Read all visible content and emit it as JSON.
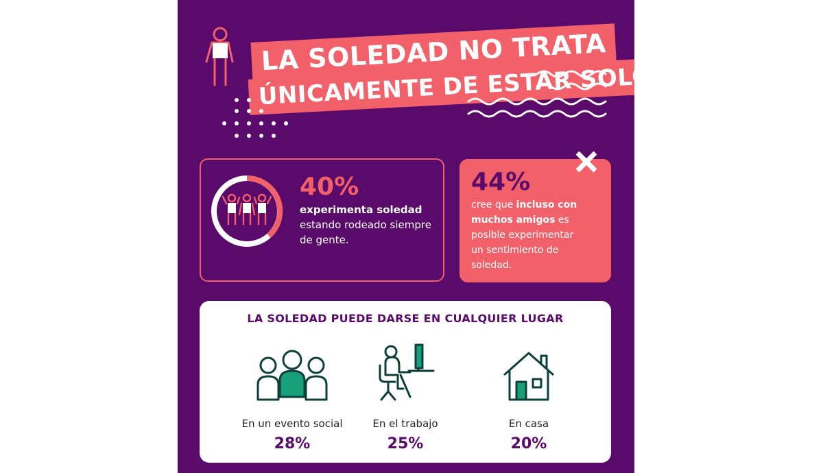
{
  "title": {
    "line1": "LA SOLEDAD NO TRATA",
    "line2": "ÚNICAMENTE DE ESTAR SOLO"
  },
  "stat_left": {
    "percent": "40%",
    "bold_text": "experimenta soledad",
    "text": "estando rodeado siempre de gente."
  },
  "stat_right": {
    "percent": "44%",
    "text_before": "cree que ",
    "bold_text": "incluso con muchos amigos",
    "text_after": " es posible experimentar un sentimiento de soledad."
  },
  "places": {
    "title": "LA SOLEDAD PUEDE DARSE EN CUALQUIER LUGAR",
    "items": [
      {
        "label": "En un evento social",
        "value": "28%",
        "icon": "group-people-icon"
      },
      {
        "label": "En el trabajo",
        "value": "25%",
        "icon": "desk-worker-icon"
      },
      {
        "label": "En casa",
        "value": "20%",
        "icon": "house-icon"
      }
    ]
  },
  "colors": {
    "purple": "#5a0a6a",
    "coral": "#f2616a",
    "teal": "#17a07a",
    "dark_teal": "#0d3f3a"
  }
}
